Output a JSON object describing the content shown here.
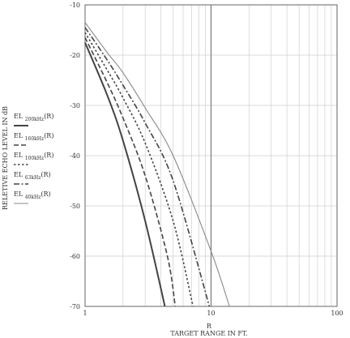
{
  "chart_data": {
    "type": "line",
    "xlabel": "TARGET RANGE IN FT.",
    "xvar": "R",
    "ylabel": "RELETIVE ECHO LEVEL IN dB",
    "x_scale": "log",
    "xlim": [
      1,
      100
    ],
    "ylim": [
      -70,
      -10
    ],
    "x_ticks": [
      "1",
      "10",
      "100"
    ],
    "y_ticks": [
      "-10",
      "-20",
      "-30",
      "-40",
      "-50",
      "-60",
      "-70"
    ],
    "grid": true,
    "legend_position": "left",
    "series": [
      {
        "name": "EL",
        "subscript": "200kHz",
        "arg": "(R)",
        "style": "solid-bold",
        "color": "#444444",
        "x": [
          1,
          1.5,
          2,
          3,
          4.3
        ],
        "y": [
          -17.5,
          -28,
          -37,
          -53,
          -70
        ]
      },
      {
        "name": "EL",
        "subscript": "160kHz",
        "arg": "(R)",
        "style": "dashed",
        "color": "#444444",
        "x": [
          1,
          1.5,
          2,
          3,
          4.5,
          5.2
        ],
        "y": [
          -16.5,
          -25.5,
          -32.5,
          -44,
          -60,
          -70
        ]
      },
      {
        "name": "EL",
        "subscript": "100kHz",
        "arg": "(R)",
        "style": "dotted",
        "color": "#444444",
        "x": [
          1,
          1.5,
          2,
          3,
          5,
          7.2
        ],
        "y": [
          -15.5,
          -23,
          -28.5,
          -37.5,
          -53,
          -70
        ]
      },
      {
        "name": "EL",
        "subscript": "63kHz",
        "arg": "(R)",
        "style": "dash-dot",
        "color": "#444444",
        "x": [
          1,
          1.5,
          2,
          3,
          5,
          9.7
        ],
        "y": [
          -14.5,
          -21,
          -26,
          -33.5,
          -45,
          -70
        ]
      },
      {
        "name": "EL",
        "subscript": "40kHz",
        "arg": "(R)",
        "style": "solid-thin",
        "color": "#888888",
        "x": [
          1,
          1.5,
          2,
          3,
          5,
          10,
          14
        ],
        "y": [
          -13.5,
          -19.5,
          -23.5,
          -30.5,
          -40,
          -59,
          -70
        ]
      }
    ]
  }
}
